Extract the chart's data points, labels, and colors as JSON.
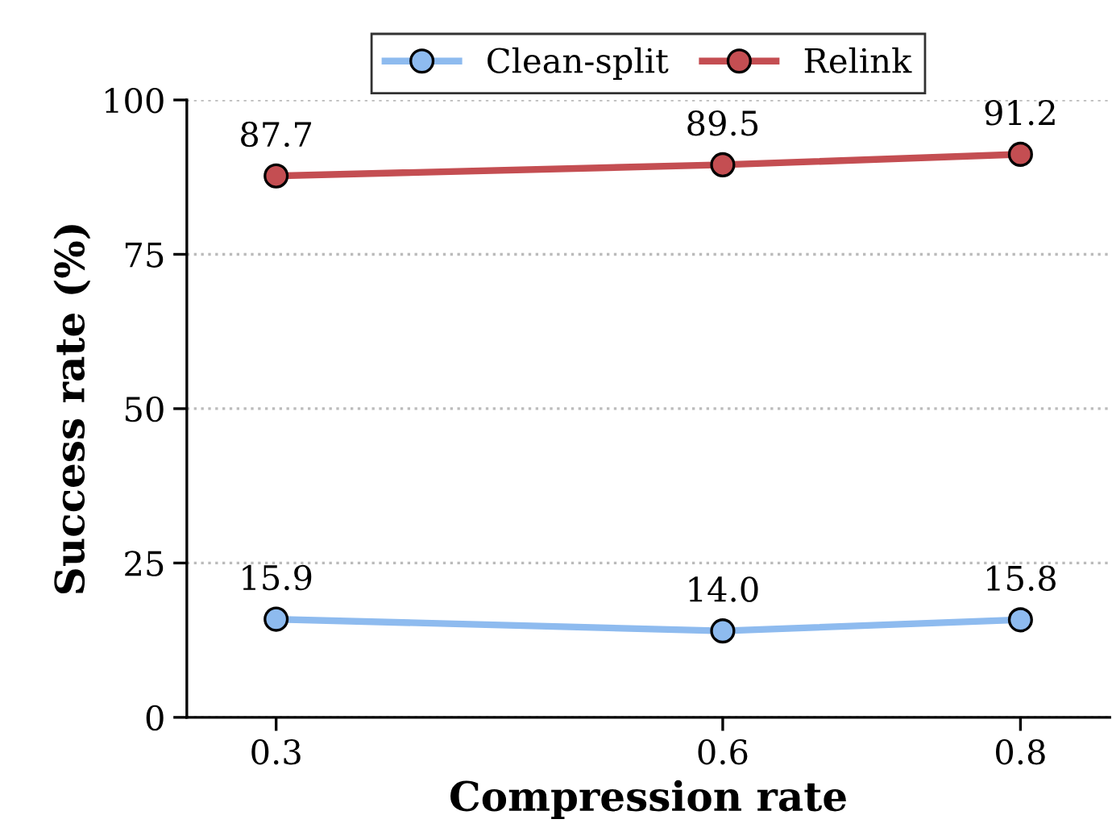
{
  "chart_data": {
    "type": "line",
    "xlabel": "Compression rate",
    "ylabel": "Success rate (%)",
    "x": [
      0.3,
      0.6,
      0.8
    ],
    "xlim": [
      0.24,
      0.86
    ],
    "xticks": [
      0.3,
      0.6,
      0.8
    ],
    "ylim": [
      0,
      100
    ],
    "yticks": [
      0,
      25,
      50,
      75,
      100
    ],
    "series": [
      {
        "name": "Clean-split",
        "color": "#8ebbef",
        "values": [
          15.9,
          14.0,
          15.8
        ],
        "value_labels": [
          "15.9",
          "14.0",
          "15.8"
        ]
      },
      {
        "name": "Relink",
        "color": "#c44e52",
        "values": [
          87.7,
          89.5,
          91.2
        ],
        "value_labels": [
          "87.7",
          "89.5",
          "91.2"
        ]
      }
    ],
    "grid": "y",
    "legend": "top",
    "marker": "circle",
    "line_style": "solid"
  }
}
